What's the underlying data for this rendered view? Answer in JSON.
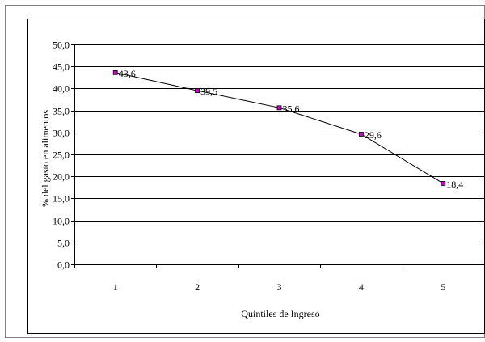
{
  "chart_data": {
    "type": "line",
    "title": "",
    "xlabel": "Quintiles de Ingreso",
    "ylabel": "% del gasto en alimentos",
    "categories": [
      "1",
      "2",
      "3",
      "4",
      "5"
    ],
    "values": [
      43.6,
      39.5,
      35.6,
      29.6,
      18.4
    ],
    "data_labels": [
      "43,6",
      "39,5",
      "35,6",
      "29,6",
      "18,4"
    ],
    "yticks": [
      "0,0",
      "5,0",
      "10,0",
      "15,0",
      "20,0",
      "25,0",
      "30,0",
      "35,0",
      "40,0",
      "45,0",
      "50,0"
    ],
    "ylim": [
      0,
      50
    ],
    "ystep": 5,
    "grid": true,
    "legend": "none",
    "colors": {
      "line": "#000000",
      "marker_fill": "#cc00cc",
      "marker_stroke": "#000000",
      "grid": "#000000",
      "border": "#808080"
    }
  }
}
